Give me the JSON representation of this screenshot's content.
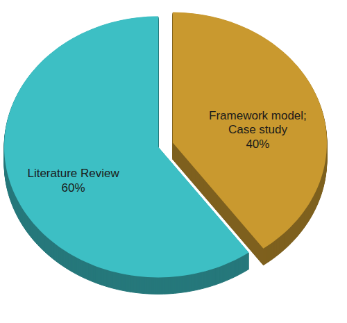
{
  "chart_data": {
    "type": "pie",
    "categories": [
      "Literature Review",
      "Framework model; Case study"
    ],
    "values": [
      60,
      40
    ],
    "value_labels": [
      "60%",
      "40%"
    ],
    "colors": [
      "#3dbfc4",
      "#c9992f"
    ],
    "data_labels": true
  }
}
